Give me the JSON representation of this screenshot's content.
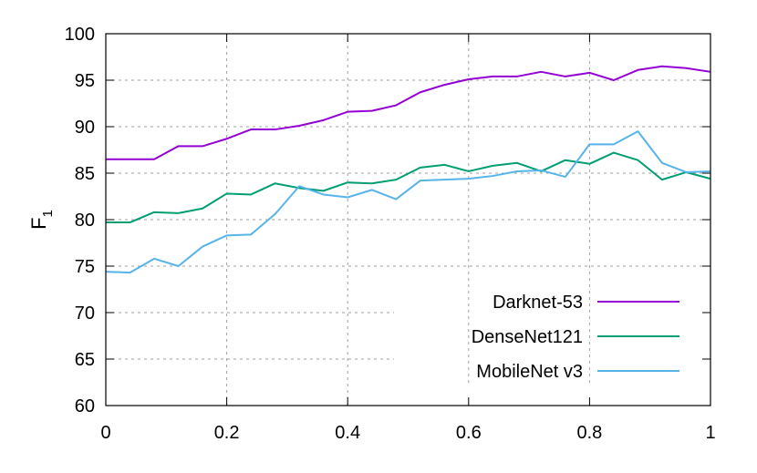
{
  "chart_data": {
    "type": "line",
    "title": "",
    "xlabel": "",
    "ylabel": "F",
    "ylabel_subscript": "1",
    "xlim": [
      0,
      1
    ],
    "ylim": [
      60,
      100
    ],
    "x_ticks": [
      "0",
      "0.2",
      "0.4",
      "0.6",
      "0.8",
      "1"
    ],
    "y_ticks": [
      "60",
      "65",
      "70",
      "75",
      "80",
      "85",
      "90",
      "95",
      "100"
    ],
    "grid": true,
    "legend_position": "bottom-right",
    "x": [
      0,
      0.04,
      0.08,
      0.12,
      0.16,
      0.2,
      0.24,
      0.28,
      0.32,
      0.36,
      0.4,
      0.44,
      0.48,
      0.52,
      0.56,
      0.6,
      0.64,
      0.68,
      0.72,
      0.76,
      0.8,
      0.84,
      0.88,
      0.92,
      0.96,
      1.0
    ],
    "series": [
      {
        "name": "Darknet-53",
        "color": "#9400d3",
        "values": [
          86.5,
          86.5,
          86.5,
          87.9,
          87.9,
          88.7,
          89.7,
          89.7,
          90.1,
          90.7,
          91.6,
          91.7,
          92.3,
          93.7,
          94.5,
          95.1,
          95.4,
          95.4,
          95.9,
          95.4,
          95.8,
          95.0,
          96.1,
          96.5,
          96.3,
          95.9
        ]
      },
      {
        "name": "DenseNet121",
        "color": "#009e73",
        "values": [
          79.7,
          79.7,
          80.8,
          80.7,
          81.2,
          82.8,
          82.7,
          83.9,
          83.4,
          83.1,
          84.0,
          83.9,
          84.3,
          85.6,
          85.9,
          85.2,
          85.8,
          86.1,
          85.2,
          86.4,
          86.0,
          87.2,
          86.4,
          84.3,
          85.1,
          84.4
        ]
      },
      {
        "name": "MobileNet v3",
        "color": "#56b4e9",
        "values": [
          74.4,
          74.3,
          75.8,
          75.0,
          77.1,
          78.3,
          78.4,
          80.6,
          83.6,
          82.7,
          82.4,
          83.2,
          82.2,
          84.2,
          84.3,
          84.4,
          84.7,
          85.2,
          85.3,
          84.6,
          88.1,
          88.1,
          89.5,
          86.1,
          85.1,
          85.2
        ]
      }
    ]
  }
}
